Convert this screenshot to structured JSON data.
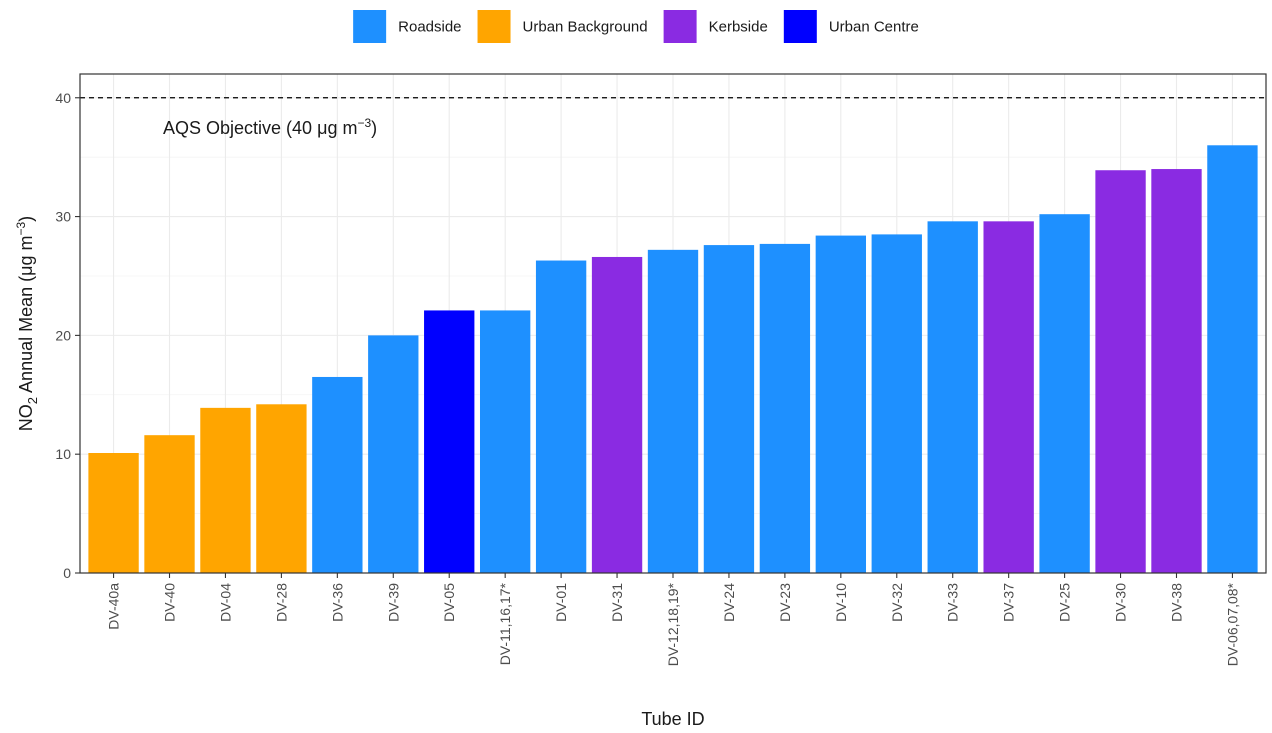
{
  "chart_data": {
    "type": "bar",
    "xlabel": "Tube ID",
    "ylabel_parts": {
      "pre": "NO",
      "sub": "2",
      "mid": " Annual Mean (",
      "mu": "μ",
      "unit": "g m",
      "exp": "−3",
      "post": ")"
    },
    "ylim": [
      0,
      42
    ],
    "yticks": [
      0,
      10,
      20,
      30,
      40
    ],
    "grid": true,
    "legend_position": "top",
    "legend": [
      {
        "name": "Roadside",
        "color": "#1E90FF"
      },
      {
        "name": "Urban Background",
        "color": "#FFA500"
      },
      {
        "name": "Kerbside",
        "color": "#8A2BE2"
      },
      {
        "name": "Urban Centre",
        "color": "#0000FF"
      }
    ],
    "categories": [
      "DV-40a",
      "DV-40",
      "DV-04",
      "DV-28",
      "DV-36",
      "DV-39",
      "DV-05",
      "DV-11,16,17*",
      "DV-01",
      "DV-31",
      "DV-12,18,19*",
      "DV-24",
      "DV-23",
      "DV-10",
      "DV-32",
      "DV-33",
      "DV-37",
      "DV-25",
      "DV-30",
      "DV-38",
      "DV-06,07,08*"
    ],
    "values": [
      10.1,
      11.6,
      13.9,
      14.2,
      16.5,
      20.0,
      22.1,
      22.1,
      26.3,
      26.6,
      27.2,
      27.6,
      27.7,
      28.4,
      28.5,
      29.6,
      29.6,
      30.2,
      33.9,
      34.0,
      36.0
    ],
    "site_types": [
      "Urban Background",
      "Urban Background",
      "Urban Background",
      "Urban Background",
      "Roadside",
      "Roadside",
      "Urban Centre",
      "Roadside",
      "Roadside",
      "Kerbside",
      "Roadside",
      "Roadside",
      "Roadside",
      "Roadside",
      "Roadside",
      "Roadside",
      "Kerbside",
      "Roadside",
      "Kerbside",
      "Kerbside",
      "Roadside"
    ],
    "reference_line": {
      "value": 40,
      "style": "dashed",
      "label_parts": {
        "pre": "AQS Objective (40 ",
        "mu": "μ",
        "unit": "g m",
        "exp": "−3",
        "post": ")"
      }
    }
  }
}
